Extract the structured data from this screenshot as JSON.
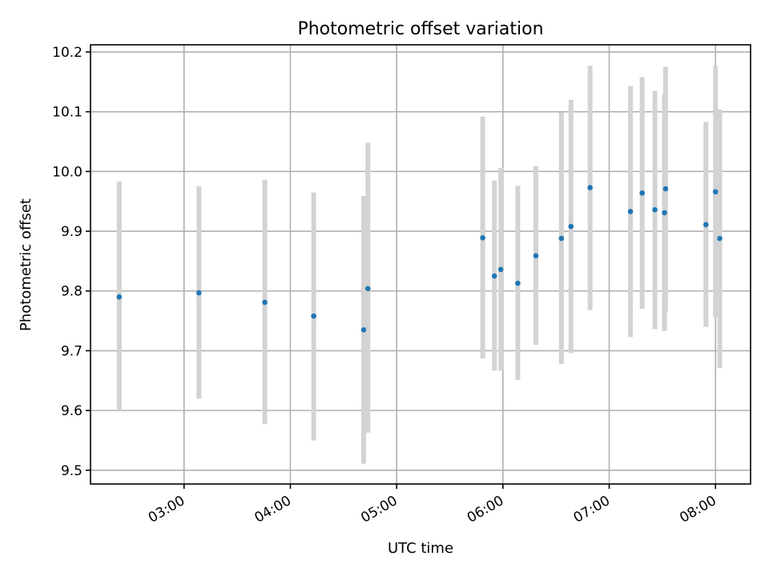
{
  "chart_data": {
    "type": "scatter",
    "title": "Photometric offset variation",
    "xlabel": "UTC time",
    "ylabel": "Photometric offset",
    "x_unit": "hours UTC",
    "xlim": [
      2.12,
      8.33
    ],
    "ylim": [
      9.477,
      10.212
    ],
    "grid": true,
    "legend": "none",
    "x_ticks": [
      {
        "value": 3,
        "label": "03:00"
      },
      {
        "value": 4,
        "label": "04:00"
      },
      {
        "value": 5,
        "label": "05:00"
      },
      {
        "value": 6,
        "label": "06:00"
      },
      {
        "value": 7,
        "label": "07:00"
      },
      {
        "value": 8,
        "label": "08:00"
      }
    ],
    "y_ticks": [
      {
        "value": 9.5,
        "label": "9.5"
      },
      {
        "value": 9.6,
        "label": "9.6"
      },
      {
        "value": 9.7,
        "label": "9.7"
      },
      {
        "value": 9.8,
        "label": "9.8"
      },
      {
        "value": 9.9,
        "label": "9.9"
      },
      {
        "value": 10.0,
        "label": "10.0"
      },
      {
        "value": 10.1,
        "label": "10.1"
      },
      {
        "value": 10.2,
        "label": "10.2"
      }
    ],
    "point_color": "#1f77b4",
    "errorbar_color": "#d3d3d3",
    "points": [
      {
        "x": 2.39,
        "y": 9.79,
        "lo": 9.6,
        "hi": 9.983
      },
      {
        "x": 3.14,
        "y": 9.797,
        "lo": 9.62,
        "hi": 9.975
      },
      {
        "x": 3.76,
        "y": 9.781,
        "lo": 9.577,
        "hi": 9.986
      },
      {
        "x": 4.22,
        "y": 9.758,
        "lo": 9.55,
        "hi": 9.965
      },
      {
        "x": 4.69,
        "y": 9.735,
        "lo": 9.511,
        "hi": 9.959
      },
      {
        "x": 4.73,
        "y": 9.804,
        "lo": 9.563,
        "hi": 10.048
      },
      {
        "x": 5.81,
        "y": 9.889,
        "lo": 9.687,
        "hi": 10.092
      },
      {
        "x": 5.92,
        "y": 9.825,
        "lo": 9.667,
        "hi": 9.985
      },
      {
        "x": 5.98,
        "y": 9.836,
        "lo": 9.667,
        "hi": 10.006
      },
      {
        "x": 6.14,
        "y": 9.813,
        "lo": 9.651,
        "hi": 9.976
      },
      {
        "x": 6.31,
        "y": 9.859,
        "lo": 9.71,
        "hi": 10.009
      },
      {
        "x": 6.55,
        "y": 9.888,
        "lo": 9.678,
        "hi": 10.099
      },
      {
        "x": 6.64,
        "y": 9.908,
        "lo": 9.696,
        "hi": 10.12
      },
      {
        "x": 6.82,
        "y": 9.973,
        "lo": 9.768,
        "hi": 10.177
      },
      {
        "x": 7.2,
        "y": 9.933,
        "lo": 9.723,
        "hi": 10.143
      },
      {
        "x": 7.31,
        "y": 9.964,
        "lo": 9.77,
        "hi": 10.158
      },
      {
        "x": 7.43,
        "y": 9.936,
        "lo": 9.736,
        "hi": 10.135
      },
      {
        "x": 7.52,
        "y": 9.931,
        "lo": 9.733,
        "hi": 10.13
      },
      {
        "x": 7.53,
        "y": 9.971,
        "lo": 9.766,
        "hi": 10.175
      },
      {
        "x": 7.91,
        "y": 9.911,
        "lo": 9.74,
        "hi": 10.083
      },
      {
        "x": 8.0,
        "y": 9.966,
        "lo": 9.756,
        "hi": 10.177
      },
      {
        "x": 8.04,
        "y": 9.888,
        "lo": 9.671,
        "hi": 10.104
      }
    ]
  }
}
